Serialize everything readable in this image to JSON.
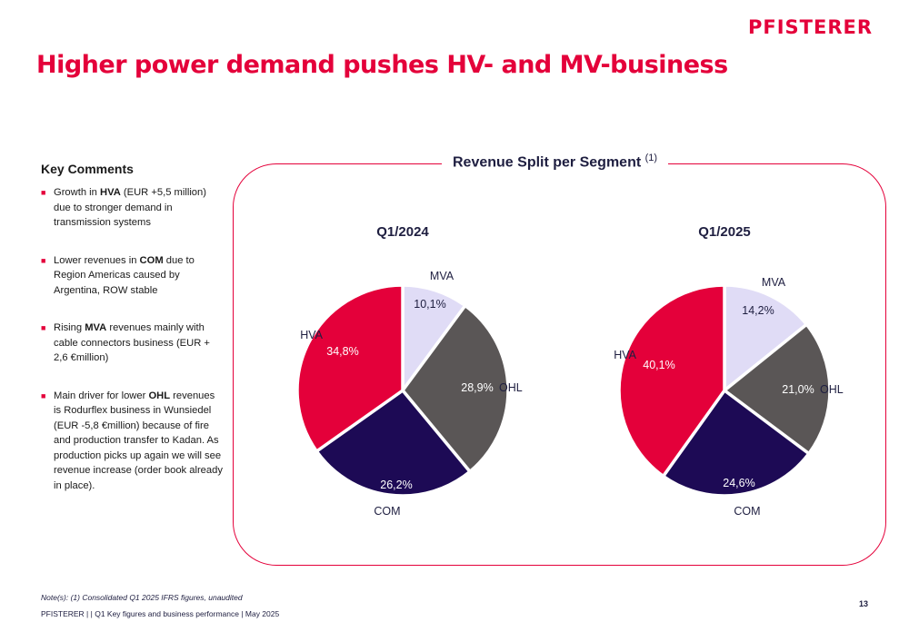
{
  "brand": {
    "logo": "PFISTERER"
  },
  "page_title": "Higher power demand pushes HV- and MV-business",
  "key_comments": {
    "heading": "Key Comments",
    "items": [
      {
        "parts": [
          {
            "t": "Growth in ",
            "b": false
          },
          {
            "t": "HVA",
            "b": true
          },
          {
            "t": " (EUR +5,5 million) due to stronger demand in transmission systems",
            "b": false
          }
        ]
      },
      {
        "parts": [
          {
            "t": "Lower revenues in ",
            "b": false
          },
          {
            "t": "COM",
            "b": true
          },
          {
            "t": " due to Region Americas caused by Argentina, ROW stable",
            "b": false
          }
        ]
      },
      {
        "parts": [
          {
            "t": "Rising ",
            "b": false
          },
          {
            "t": "MVA",
            "b": true
          },
          {
            "t": " revenues mainly with cable connectors business (EUR + 2,6 €million)",
            "b": false
          }
        ]
      },
      {
        "parts": [
          {
            "t": "Main driver for lower ",
            "b": false
          },
          {
            "t": "OHL",
            "b": true
          },
          {
            "t": " revenues is Rodurflex business in Wunsiedel (EUR -5,8 €million) because of fire and production transfer to Kadan. As production picks up again we will see revenue increase (order book already in place).",
            "b": false
          }
        ]
      }
    ]
  },
  "panel": {
    "title": "Revenue Split per Segment",
    "superscript": "(1)"
  },
  "colors": {
    "accent": "#e4003a",
    "MVA": "#e0dcf6",
    "OHL": "#5a5656",
    "COM": "#1d0a55",
    "HVA": "#e4003a"
  },
  "chart_data": [
    {
      "type": "pie",
      "title": "Q1/2024",
      "slices": [
        {
          "label": "MVA",
          "value": 10.1,
          "display": "10,1%"
        },
        {
          "label": "OHL",
          "value": 28.9,
          "display": "28,9%"
        },
        {
          "label": "COM",
          "value": 26.2,
          "display": "26,2%"
        },
        {
          "label": "HVA",
          "value": 34.8,
          "display": "34,8%"
        }
      ]
    },
    {
      "type": "pie",
      "title": "Q1/2025",
      "slices": [
        {
          "label": "MVA",
          "value": 14.2,
          "display": "14,2%"
        },
        {
          "label": "OHL",
          "value": 21.0,
          "display": "21,0%"
        },
        {
          "label": "COM",
          "value": 24.6,
          "display": "24,6%"
        },
        {
          "label": "HVA",
          "value": 40.1,
          "display": "40,1%"
        }
      ]
    }
  ],
  "note": "Note(s): (1) Consolidated Q1 2025 IFRS figures, unaudited",
  "footer": "PFISTERER | | Q1 Key figures and business performance | May 2025",
  "page_number": "13"
}
